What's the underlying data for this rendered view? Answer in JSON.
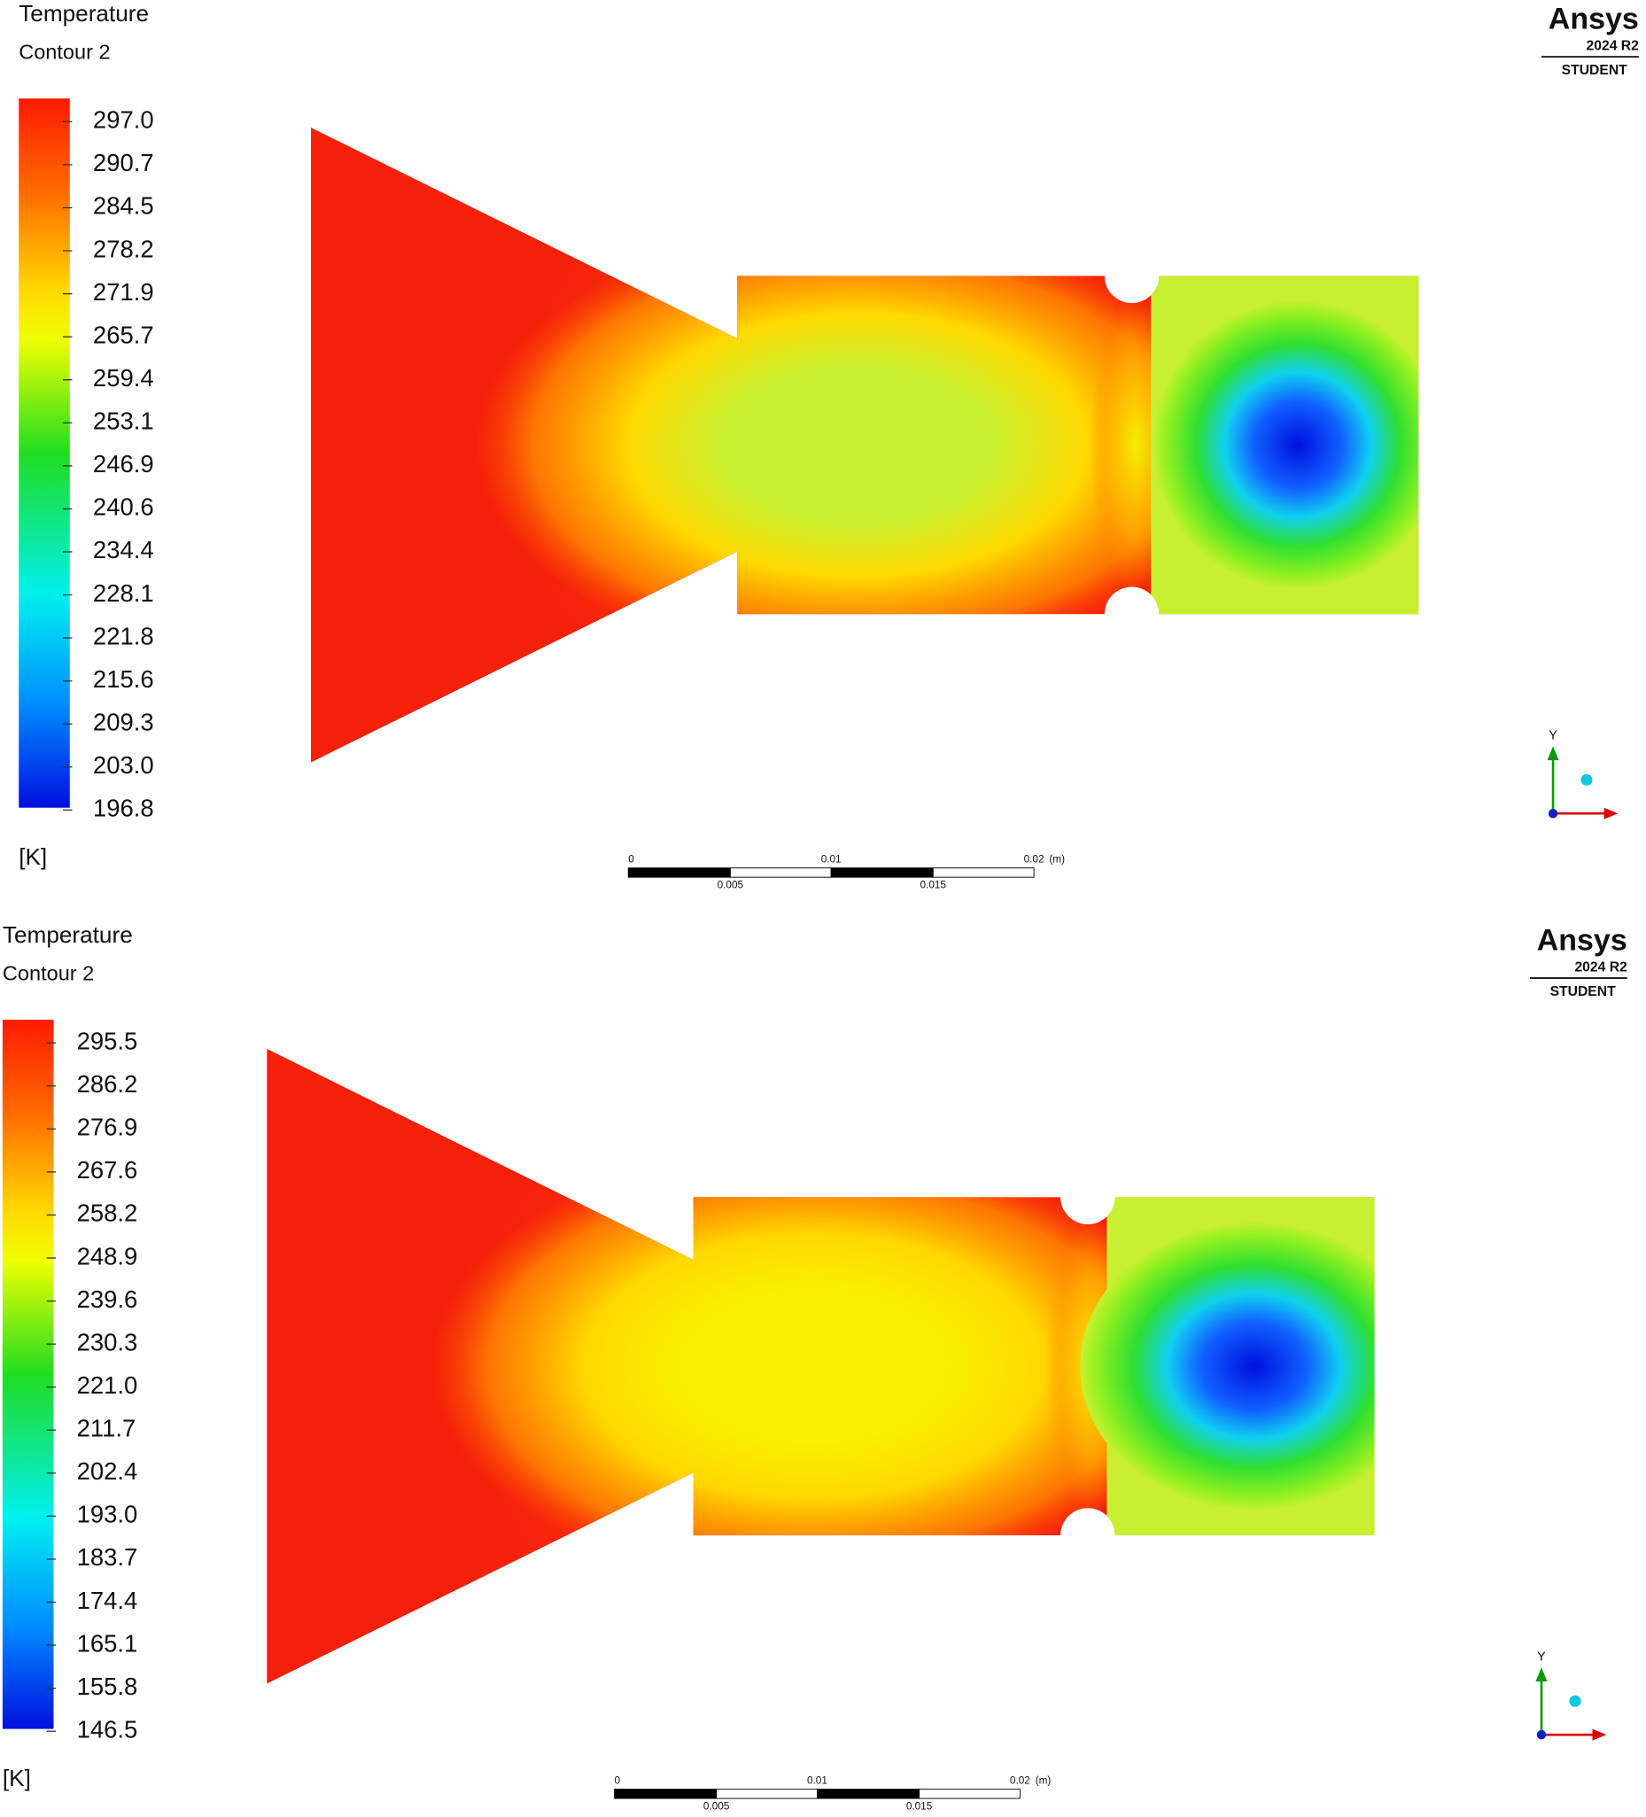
{
  "panels": [
    {
      "title": "Temperature",
      "subtitle": "Contour 2",
      "legend_labels": [
        "297.0",
        "290.7",
        "284.5",
        "278.2",
        "271.9",
        "265.7",
        "259.4",
        "253.1",
        "246.9",
        "240.6",
        "234.4",
        "228.1",
        "221.8",
        "215.6",
        "209.3",
        "203.0",
        "196.8"
      ],
      "unit": "[K]",
      "logo": {
        "brand": "Ansys",
        "version": "2024 R2",
        "edition": "STUDENT"
      },
      "scale_bar": {
        "top_labels": [
          "0",
          "0.01",
          "0.02",
          "(m)"
        ],
        "bottom_labels": [
          "0.005",
          "0.015"
        ]
      },
      "axis_label": "Y"
    },
    {
      "title": "Temperature",
      "subtitle": "Contour 2",
      "legend_labels": [
        "295.5",
        "286.2",
        "276.9",
        "267.6",
        "258.2",
        "248.9",
        "239.6",
        "230.3",
        "221.0",
        "211.7",
        "202.4",
        "193.0",
        "183.7",
        "174.4",
        "165.1",
        "155.8",
        "146.5"
      ],
      "unit": "[K]",
      "logo": {
        "brand": "Ansys",
        "version": "2024 R2",
        "edition": "STUDENT"
      },
      "scale_bar": {
        "top_labels": [
          "0",
          "0.01",
          "0.02",
          "(m)"
        ],
        "bottom_labels": [
          "0.005",
          "0.015"
        ]
      },
      "axis_label": "Y"
    }
  ]
}
